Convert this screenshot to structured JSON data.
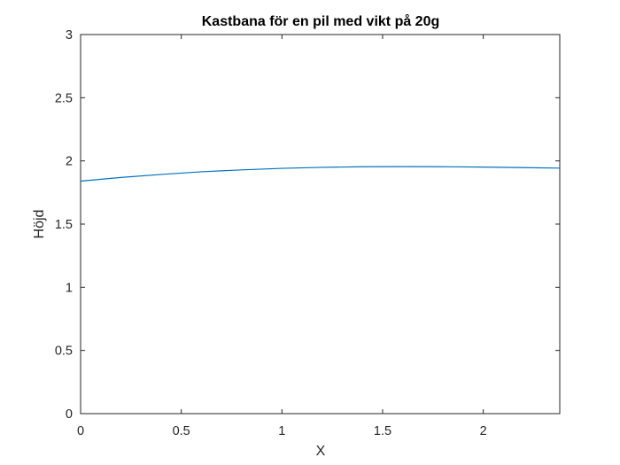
{
  "chart_data": {
    "type": "line",
    "title": "Kastbana för en pil med vikt på 20g",
    "xlabel": "X",
    "ylabel": "Höjd",
    "xlim": [
      0,
      2.38
    ],
    "ylim": [
      0,
      3
    ],
    "xticks": [
      0,
      0.5,
      1,
      1.5,
      2
    ],
    "xtick_labels": [
      "0",
      "0.5",
      "1",
      "1.5",
      "2"
    ],
    "yticks": [
      0,
      0.5,
      1,
      1.5,
      2,
      2.5,
      3
    ],
    "ytick_labels": [
      "0",
      "0.5",
      "1",
      "1.5",
      "2",
      "2.5",
      "3"
    ],
    "grid": false,
    "series": [
      {
        "color": "#0072bd",
        "x": [
          0,
          0.2,
          0.4,
          0.6,
          0.8,
          1.0,
          1.2,
          1.4,
          1.6,
          1.8,
          2.0,
          2.2,
          2.38
        ],
        "y": [
          1.84,
          1.869,
          1.893,
          1.914,
          1.929,
          1.941,
          1.949,
          1.954,
          1.955,
          1.954,
          1.951,
          1.947,
          1.943
        ]
      }
    ]
  }
}
